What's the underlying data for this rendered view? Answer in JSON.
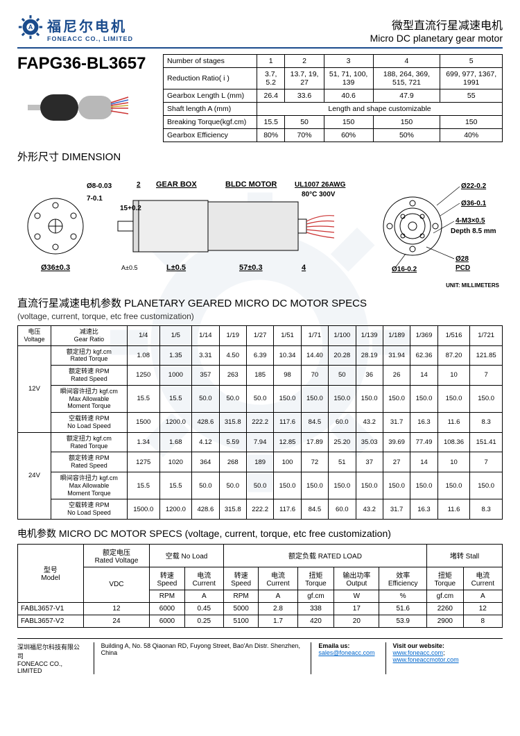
{
  "header": {
    "logo_cn": "福尼尔电机",
    "logo_en": "FONEACC CO., LIMITED",
    "title_cn": "微型直流行星减速电机",
    "title_en": "Micro DC planetary gear motor"
  },
  "model": "FAPG36-BL3657",
  "gear_table": {
    "rows": [
      {
        "label": "Number of stages",
        "vals": [
          "1",
          "2",
          "3",
          "4",
          "5"
        ]
      },
      {
        "label": "Reduction Ratio( i )",
        "vals": [
          "3.7, 5.2",
          "13.7, 19, 27",
          "51, 71, 100, 139",
          "188, 264, 369, 515, 721",
          "699, 977, 1367, 1991"
        ]
      },
      {
        "label": "Gearbox Length L (mm)",
        "vals": [
          "26.4",
          "33.6",
          "40.6",
          "47.9",
          "55"
        ]
      },
      {
        "label": "Shaft length A (mm)",
        "span": "Length and shape customizable"
      },
      {
        "label": "Breaking Torque(kgf.cm)",
        "vals": [
          "15.5",
          "50",
          "150",
          "150",
          "150"
        ]
      },
      {
        "label": "Gearbox Efficiency",
        "vals": [
          "80%",
          "70%",
          "60%",
          "50%",
          "40%"
        ]
      }
    ]
  },
  "dim": {
    "title": "外形尺寸 DIMENSION",
    "unit": "UNIT: MILLIMETERS",
    "labels": {
      "diam": "Ø36±0.3",
      "shaft_d": "Ø8-0.03",
      "shaft_flat": "7-0.1",
      "front": "2",
      "a": "15+0.2",
      "gearbox": "GEAR BOX",
      "motor": "BLDC MOTOR",
      "wire": "UL1007 26AWG",
      "wire2": "80°C 300V",
      "l": "L±0.5",
      "ml": "57±0.3",
      "back": "4",
      "atol": "A±0.5",
      "d22": "Ø22-0.2",
      "d36": "Ø36-0.1",
      "holes": "4-M3×0.5",
      "depth": "Depth 8.5 mm",
      "d16": "Ø16-0.2",
      "pcd": "Ø28 PCD"
    }
  },
  "planetary": {
    "title": "直流行星减速电机参数  PLANETARY GEARED MICRO DC MOTOR SPECS",
    "sub": "(voltage, current, torque, etc free customization)",
    "voltage_label": "电压\nVoltage",
    "ratio_label": "减速比\nGear Ratio",
    "ratios": [
      "1/4",
      "1/5",
      "1/14",
      "1/19",
      "1/27",
      "1/51",
      "1/71",
      "1/100",
      "1/139",
      "1/189",
      "1/369",
      "1/516",
      "1/721"
    ],
    "groups": [
      {
        "v": "12V",
        "rows": [
          {
            "l": "额定扭力 kgf.cm\nRated Torque",
            "d": [
              "1.08",
              "1.35",
              "3.31",
              "4.50",
              "6.39",
              "10.34",
              "14.40",
              "20.28",
              "28.19",
              "31.94",
              "62.36",
              "87.20",
              "121.85"
            ]
          },
          {
            "l": "额定转速 RPM\nRated Speed",
            "d": [
              "1250",
              "1000",
              "357",
              "263",
              "185",
              "98",
              "70",
              "50",
              "36",
              "26",
              "14",
              "10",
              "7"
            ]
          },
          {
            "l": "瞬间容许扭力 kgf.cm\nMax Allowable\nMoment Torque",
            "d": [
              "15.5",
              "15.5",
              "50.0",
              "50.0",
              "50.0",
              "150.0",
              "150.0",
              "150.0",
              "150.0",
              "150.0",
              "150.0",
              "150.0",
              "150.0"
            ]
          },
          {
            "l": "空载转速 RPM\nNo Load Speed",
            "d": [
              "1500",
              "1200.0",
              "428.6",
              "315.8",
              "222.2",
              "117.6",
              "84.5",
              "60.0",
              "43.2",
              "31.7",
              "16.3",
              "11.6",
              "8.3"
            ]
          }
        ]
      },
      {
        "v": "24V",
        "rows": [
          {
            "l": "额定扭力 kgf.cm\nRated Torque",
            "d": [
              "1.34",
              "1.68",
              "4.12",
              "5.59",
              "7.94",
              "12.85",
              "17.89",
              "25.20",
              "35.03",
              "39.69",
              "77.49",
              "108.36",
              "151.41"
            ]
          },
          {
            "l": "额定转速 RPM\nRated Speed",
            "d": [
              "1275",
              "1020",
              "364",
              "268",
              "189",
              "100",
              "72",
              "51",
              "37",
              "27",
              "14",
              "10",
              "7"
            ]
          },
          {
            "l": "瞬间容许扭力 kgf.cm\nMax Allowable\nMoment Torque",
            "d": [
              "15.5",
              "15.5",
              "50.0",
              "50.0",
              "50.0",
              "150.0",
              "150.0",
              "150.0",
              "150.0",
              "150.0",
              "150.0",
              "150.0",
              "150.0"
            ]
          },
          {
            "l": "空载转速 RPM\nNo Load Speed",
            "d": [
              "1500.0",
              "1200.0",
              "428.6",
              "315.8",
              "222.2",
              "117.6",
              "84.5",
              "60.0",
              "43.2",
              "31.7",
              "16.3",
              "11.6",
              "8.3"
            ]
          }
        ]
      }
    ]
  },
  "motor": {
    "title": "电机参数 MICRO DC MOTOR SPECS  (voltage, current, torque, etc free customization)",
    "headers": {
      "model": "型号\nModel",
      "voltage": "额定电压\nRated Voltage",
      "noload": "空载 No Load",
      "rated": "额定负载 RATED LOAD",
      "stall": "堵转 Stall",
      "vdc": "VDC",
      "speed": "转速\nSpeed",
      "current": "电流\nCurrent",
      "torque": "扭矩\nTorque",
      "power": "输出功率\nOutput",
      "eff": "效率\nEfficiency",
      "rpm": "RPM",
      "a": "A",
      "gfcm": "gf.cm",
      "w": "W",
      "pct": "%"
    },
    "rows": [
      {
        "m": "FABL3657-V1",
        "v": "12",
        "d": [
          "6000",
          "0.45",
          "5000",
          "2.8",
          "338",
          "17",
          "51.6",
          "2260",
          "12"
        ]
      },
      {
        "m": "FABL3657-V2",
        "v": "24",
        "d": [
          "6000",
          "0.25",
          "5100",
          "1.7",
          "420",
          "20",
          "53.9",
          "2900",
          "8"
        ]
      }
    ]
  },
  "footer": {
    "company_cn": "深圳福尼尔科技有限公司",
    "company_en": "FONEACC CO., LIMITED",
    "address": "Building A, No. 58 Qiaonan RD, Fuyong Street, Bao'An Distr. Shenzhen, China",
    "email_label": "Emaila us:",
    "email": "sales@foneacc.com",
    "web_label": "Visit our website:",
    "web1": "www.foneacc.com",
    "web2": "www.foneaccmotor.com"
  }
}
